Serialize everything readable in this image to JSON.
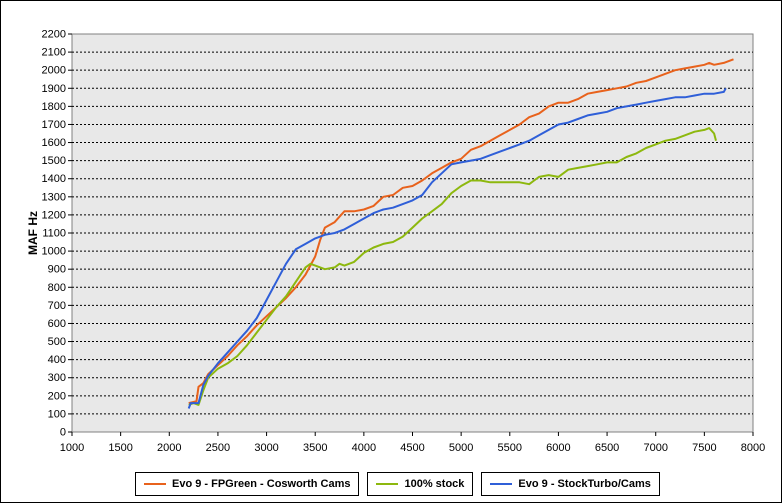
{
  "chart_data": {
    "type": "line",
    "title": "",
    "xlabel": "",
    "ylabel": "MAF Hz",
    "xlim": [
      1000,
      8000
    ],
    "ylim": [
      0,
      2200
    ],
    "xticks": [
      1000,
      1500,
      2000,
      2500,
      3000,
      3500,
      4000,
      4500,
      5000,
      5500,
      6000,
      6500,
      7000,
      7500,
      8000
    ],
    "yticks": [
      0,
      100,
      200,
      300,
      400,
      500,
      600,
      700,
      800,
      900,
      1000,
      1100,
      1200,
      1300,
      1400,
      1500,
      1600,
      1700,
      1800,
      1900,
      2000,
      2100,
      2200
    ],
    "grid": "horizontal-dashed",
    "legend_position": "bottom",
    "series": [
      {
        "name": "Evo 9 - FPGreen - Cosworth Cams",
        "color": "#e8621c",
        "points": [
          [
            2200,
            160
          ],
          [
            2280,
            170
          ],
          [
            2300,
            250
          ],
          [
            2350,
            270
          ],
          [
            2400,
            320
          ],
          [
            2500,
            370
          ],
          [
            2600,
            420
          ],
          [
            2700,
            480
          ],
          [
            2800,
            530
          ],
          [
            2900,
            590
          ],
          [
            3000,
            640
          ],
          [
            3100,
            690
          ],
          [
            3200,
            740
          ],
          [
            3300,
            800
          ],
          [
            3400,
            870
          ],
          [
            3500,
            970
          ],
          [
            3550,
            1060
          ],
          [
            3600,
            1130
          ],
          [
            3700,
            1160
          ],
          [
            3750,
            1190
          ],
          [
            3800,
            1220
          ],
          [
            3900,
            1220
          ],
          [
            4000,
            1230
          ],
          [
            4100,
            1250
          ],
          [
            4200,
            1300
          ],
          [
            4300,
            1310
          ],
          [
            4400,
            1350
          ],
          [
            4500,
            1360
          ],
          [
            4600,
            1390
          ],
          [
            4700,
            1430
          ],
          [
            4800,
            1460
          ],
          [
            4900,
            1490
          ],
          [
            5000,
            1510
          ],
          [
            5100,
            1560
          ],
          [
            5200,
            1580
          ],
          [
            5300,
            1610
          ],
          [
            5400,
            1640
          ],
          [
            5500,
            1670
          ],
          [
            5600,
            1700
          ],
          [
            5700,
            1740
          ],
          [
            5800,
            1760
          ],
          [
            5900,
            1800
          ],
          [
            6000,
            1820
          ],
          [
            6100,
            1820
          ],
          [
            6200,
            1840
          ],
          [
            6300,
            1870
          ],
          [
            6400,
            1880
          ],
          [
            6500,
            1890
          ],
          [
            6600,
            1900
          ],
          [
            6700,
            1910
          ],
          [
            6800,
            1930
          ],
          [
            6900,
            1940
          ],
          [
            7000,
            1960
          ],
          [
            7100,
            1980
          ],
          [
            7200,
            2000
          ],
          [
            7300,
            2010
          ],
          [
            7400,
            2020
          ],
          [
            7500,
            2030
          ],
          [
            7550,
            2040
          ],
          [
            7600,
            2030
          ],
          [
            7700,
            2040
          ],
          [
            7800,
            2060
          ]
        ]
      },
      {
        "name": "100% stock",
        "color": "#8db80e",
        "points": [
          [
            2200,
            150
          ],
          [
            2250,
            160
          ],
          [
            2300,
            150
          ],
          [
            2350,
            230
          ],
          [
            2400,
            300
          ],
          [
            2500,
            350
          ],
          [
            2600,
            380
          ],
          [
            2700,
            420
          ],
          [
            2800,
            480
          ],
          [
            2900,
            550
          ],
          [
            3000,
            620
          ],
          [
            3100,
            690
          ],
          [
            3200,
            750
          ],
          [
            3300,
            830
          ],
          [
            3400,
            910
          ],
          [
            3450,
            930
          ],
          [
            3500,
            920
          ],
          [
            3600,
            900
          ],
          [
            3700,
            910
          ],
          [
            3750,
            930
          ],
          [
            3800,
            920
          ],
          [
            3900,
            940
          ],
          [
            4000,
            990
          ],
          [
            4100,
            1020
          ],
          [
            4200,
            1040
          ],
          [
            4300,
            1050
          ],
          [
            4400,
            1080
          ],
          [
            4500,
            1130
          ],
          [
            4600,
            1180
          ],
          [
            4700,
            1220
          ],
          [
            4800,
            1260
          ],
          [
            4900,
            1320
          ],
          [
            5000,
            1360
          ],
          [
            5100,
            1390
          ],
          [
            5200,
            1390
          ],
          [
            5300,
            1380
          ],
          [
            5400,
            1380
          ],
          [
            5500,
            1380
          ],
          [
            5600,
            1380
          ],
          [
            5700,
            1370
          ],
          [
            5750,
            1390
          ],
          [
            5800,
            1410
          ],
          [
            5900,
            1420
          ],
          [
            6000,
            1410
          ],
          [
            6100,
            1450
          ],
          [
            6200,
            1460
          ],
          [
            6300,
            1470
          ],
          [
            6400,
            1480
          ],
          [
            6500,
            1490
          ],
          [
            6600,
            1490
          ],
          [
            6700,
            1520
          ],
          [
            6800,
            1540
          ],
          [
            6900,
            1570
          ],
          [
            7000,
            1590
          ],
          [
            7100,
            1610
          ],
          [
            7200,
            1620
          ],
          [
            7300,
            1640
          ],
          [
            7400,
            1660
          ],
          [
            7500,
            1670
          ],
          [
            7550,
            1680
          ],
          [
            7600,
            1650
          ],
          [
            7620,
            1610
          ]
        ]
      },
      {
        "name": "Evo 9 - StockTurbo/Cams",
        "color": "#2f5fd8",
        "points": [
          [
            2200,
            130
          ],
          [
            2220,
            160
          ],
          [
            2300,
            160
          ],
          [
            2350,
            260
          ],
          [
            2400,
            310
          ],
          [
            2500,
            380
          ],
          [
            2600,
            440
          ],
          [
            2700,
            500
          ],
          [
            2800,
            560
          ],
          [
            2900,
            630
          ],
          [
            3000,
            730
          ],
          [
            3100,
            830
          ],
          [
            3200,
            930
          ],
          [
            3300,
            1010
          ],
          [
            3400,
            1040
          ],
          [
            3500,
            1070
          ],
          [
            3600,
            1090
          ],
          [
            3700,
            1100
          ],
          [
            3800,
            1120
          ],
          [
            3900,
            1150
          ],
          [
            4000,
            1180
          ],
          [
            4100,
            1210
          ],
          [
            4200,
            1230
          ],
          [
            4300,
            1240
          ],
          [
            4400,
            1260
          ],
          [
            4500,
            1280
          ],
          [
            4600,
            1310
          ],
          [
            4700,
            1380
          ],
          [
            4800,
            1430
          ],
          [
            4900,
            1480
          ],
          [
            5000,
            1490
          ],
          [
            5100,
            1500
          ],
          [
            5200,
            1510
          ],
          [
            5300,
            1530
          ],
          [
            5400,
            1550
          ],
          [
            5500,
            1570
          ],
          [
            5600,
            1590
          ],
          [
            5700,
            1610
          ],
          [
            5800,
            1640
          ],
          [
            5900,
            1670
          ],
          [
            6000,
            1700
          ],
          [
            6100,
            1710
          ],
          [
            6200,
            1730
          ],
          [
            6300,
            1750
          ],
          [
            6400,
            1760
          ],
          [
            6500,
            1770
          ],
          [
            6600,
            1790
          ],
          [
            6700,
            1800
          ],
          [
            6800,
            1810
          ],
          [
            6900,
            1820
          ],
          [
            7000,
            1830
          ],
          [
            7100,
            1840
          ],
          [
            7200,
            1850
          ],
          [
            7300,
            1850
          ],
          [
            7400,
            1860
          ],
          [
            7500,
            1870
          ],
          [
            7600,
            1870
          ],
          [
            7700,
            1880
          ],
          [
            7720,
            1900
          ]
        ]
      }
    ]
  }
}
